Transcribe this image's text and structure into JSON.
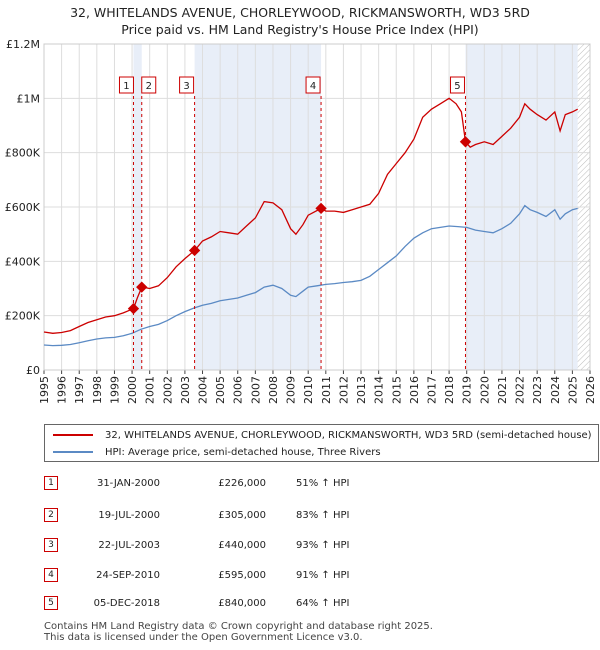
{
  "chart_data": {
    "type": "line",
    "title": "32, WHITELANDS AVENUE, CHORLEYWOOD, RICKMANSWORTH, WD3 5RD",
    "subtitle": "Price paid vs. HM Land Registry's House Price Index (HPI)",
    "xlim": [
      1995,
      2026
    ],
    "ylim": [
      0,
      1200000
    ],
    "x_ticks": [
      1995,
      1996,
      1997,
      1998,
      1999,
      2000,
      2001,
      2002,
      2003,
      2004,
      2005,
      2006,
      2007,
      2008,
      2009,
      2010,
      2011,
      2012,
      2013,
      2014,
      2015,
      2016,
      2017,
      2018,
      2019,
      2020,
      2021,
      2022,
      2023,
      2024,
      2025,
      2026
    ],
    "y_ticks": [
      0,
      200000,
      400000,
      600000,
      800000,
      1000000,
      1200000
    ],
    "y_tick_labels": [
      "£0",
      "£200K",
      "£400K",
      "£600K",
      "£800K",
      "£1M",
      "£1.2M"
    ],
    "hatch_from": 2025.3,
    "shaded_periods": [
      [
        2000.08,
        2000.55
      ],
      [
        2003.55,
        2010.73
      ],
      [
        2018.93,
        2025.3
      ]
    ],
    "series": [
      {
        "name": "32, WHITELANDS AVENUE, CHORLEYWOOD, RICKMANSWORTH, WD3 5RD (semi-detached house)",
        "color": "#cc0000",
        "x": [
          1995.0,
          1995.5,
          1996.0,
          1996.5,
          1997.0,
          1997.5,
          1998.0,
          1998.5,
          1999.0,
          1999.5,
          2000.08,
          2000.3,
          2000.55,
          2001.0,
          2001.5,
          2002.0,
          2002.5,
          2003.0,
          2003.55,
          2004.0,
          2004.5,
          2005.0,
          2005.5,
          2006.0,
          2006.5,
          2007.0,
          2007.5,
          2008.0,
          2008.5,
          2009.0,
          2009.3,
          2009.7,
          2010.0,
          2010.73,
          2011.0,
          2011.5,
          2012.0,
          2012.5,
          2013.0,
          2013.5,
          2014.0,
          2014.5,
          2015.0,
          2015.5,
          2016.0,
          2016.5,
          2017.0,
          2017.5,
          2018.0,
          2018.4,
          2018.7,
          2018.93,
          2019.2,
          2019.5,
          2020.0,
          2020.5,
          2021.0,
          2021.5,
          2022.0,
          2022.3,
          2022.6,
          2023.0,
          2023.5,
          2024.0,
          2024.3,
          2024.6,
          2025.0,
          2025.3
        ],
        "y": [
          140000,
          135000,
          138000,
          145000,
          160000,
          175000,
          185000,
          195000,
          200000,
          210000,
          226000,
          265000,
          305000,
          300000,
          310000,
          340000,
          380000,
          410000,
          440000,
          475000,
          490000,
          510000,
          505000,
          500000,
          530000,
          560000,
          620000,
          615000,
          590000,
          520000,
          500000,
          535000,
          570000,
          595000,
          585000,
          585000,
          580000,
          590000,
          600000,
          610000,
          650000,
          720000,
          760000,
          800000,
          850000,
          930000,
          960000,
          980000,
          1000000,
          980000,
          950000,
          840000,
          820000,
          830000,
          840000,
          830000,
          860000,
          890000,
          930000,
          980000,
          960000,
          940000,
          920000,
          950000,
          880000,
          940000,
          950000,
          960000
        ]
      },
      {
        "name": "HPI: Average price, semi-detached house, Three Rivers",
        "color": "#5b8ac4",
        "x": [
          1995.0,
          1995.5,
          1996.0,
          1996.5,
          1997.0,
          1997.5,
          1998.0,
          1998.5,
          1999.0,
          1999.5,
          2000.0,
          2000.5,
          2001.0,
          2001.5,
          2002.0,
          2002.5,
          2003.0,
          2003.5,
          2004.0,
          2004.5,
          2005.0,
          2005.5,
          2006.0,
          2006.5,
          2007.0,
          2007.5,
          2008.0,
          2008.5,
          2009.0,
          2009.3,
          2009.7,
          2010.0,
          2010.5,
          2011.0,
          2011.5,
          2012.0,
          2012.5,
          2013.0,
          2013.5,
          2014.0,
          2014.5,
          2015.0,
          2015.5,
          2016.0,
          2016.5,
          2017.0,
          2017.5,
          2018.0,
          2018.5,
          2019.0,
          2019.5,
          2020.0,
          2020.5,
          2021.0,
          2021.5,
          2022.0,
          2022.3,
          2022.6,
          2023.0,
          2023.5,
          2024.0,
          2024.3,
          2024.6,
          2025.0,
          2025.3
        ],
        "y": [
          92000,
          90000,
          91000,
          94000,
          100000,
          108000,
          114000,
          118000,
          120000,
          126000,
          135000,
          150000,
          160000,
          168000,
          182000,
          200000,
          215000,
          228000,
          238000,
          245000,
          255000,
          260000,
          265000,
          275000,
          285000,
          305000,
          312000,
          300000,
          275000,
          270000,
          290000,
          305000,
          310000,
          315000,
          318000,
          322000,
          325000,
          330000,
          345000,
          370000,
          395000,
          420000,
          455000,
          485000,
          505000,
          520000,
          525000,
          530000,
          528000,
          525000,
          515000,
          510000,
          505000,
          520000,
          540000,
          575000,
          605000,
          590000,
          580000,
          565000,
          590000,
          555000,
          575000,
          590000,
          595000
        ]
      }
    ],
    "sales": [
      {
        "num": "1",
        "x": 2000.08,
        "y": 226000,
        "date": "31-JAN-2000",
        "price": "£226,000",
        "hpi": "51% ↑ HPI"
      },
      {
        "num": "2",
        "x": 2000.55,
        "y": 305000,
        "date": "19-JUL-2000",
        "price": "£305,000",
        "hpi": "83% ↑ HPI"
      },
      {
        "num": "3",
        "x": 2003.55,
        "y": 440000,
        "date": "22-JUL-2003",
        "price": "£440,000",
        "hpi": "93% ↑ HPI"
      },
      {
        "num": "4",
        "x": 2010.73,
        "y": 595000,
        "date": "24-SEP-2010",
        "price": "£595,000",
        "hpi": "91% ↑ HPI"
      },
      {
        "num": "5",
        "x": 2018.93,
        "y": 840000,
        "date": "05-DEC-2018",
        "price": "£840,000",
        "hpi": "64% ↑ HPI"
      }
    ]
  },
  "legend": {
    "property_label": "32, WHITELANDS AVENUE, CHORLEYWOOD, RICKMANSWORTH, WD3 5RD (semi-detached house)",
    "hpi_label": "HPI: Average price, semi-detached house, Three Rivers"
  },
  "footer": {
    "line1": "Contains HM Land Registry data © Crown copyright and database right 2025.",
    "line2": "This data is licensed under the Open Government Licence v3.0."
  }
}
